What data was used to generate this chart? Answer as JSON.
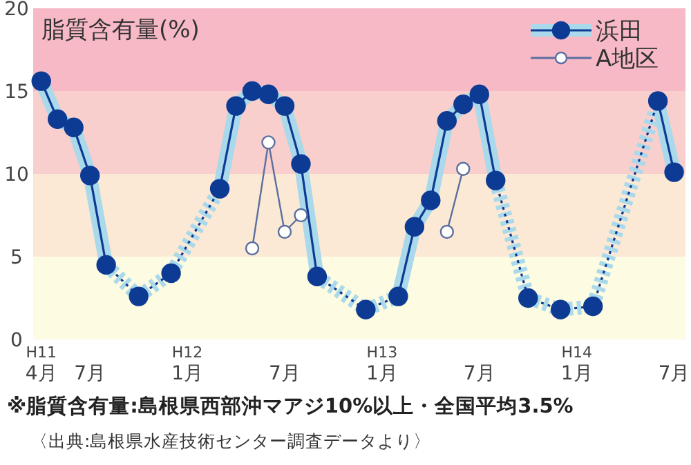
{
  "chart_data": {
    "type": "line",
    "ylabel": "脂質含有量(%)",
    "categories": [
      "H11\n4月",
      null,
      null,
      "7月",
      null,
      null,
      null,
      null,
      null,
      "H12\n1月",
      null,
      null,
      null,
      null,
      null,
      "7月",
      null,
      null,
      null,
      null,
      null,
      "H13\n1月",
      null,
      null,
      null,
      null,
      null,
      "7月",
      null,
      null,
      null,
      null,
      null,
      "H14\n1月",
      null,
      null,
      null,
      null,
      null,
      "7月"
    ],
    "series": [
      {
        "name": "浜田",
        "color": "#0d3b94",
        "marker": "circle",
        "values": [
          15.6,
          13.3,
          12.8,
          9.9,
          4.5,
          null,
          2.6,
          null,
          4.0,
          null,
          null,
          9.1,
          14.1,
          15.0,
          14.8,
          14.1,
          10.6,
          3.8,
          null,
          null,
          1.8,
          null,
          2.6,
          6.8,
          8.4,
          13.2,
          14.2,
          14.8,
          9.6,
          null,
          2.5,
          null,
          1.8,
          null,
          2.0,
          null,
          null,
          null,
          14.4,
          10.1
        ]
      },
      {
        "name": "A地区",
        "color": "#5a6fa0",
        "marker": "circle",
        "values": [
          null,
          null,
          null,
          null,
          null,
          null,
          null,
          null,
          null,
          null,
          null,
          null,
          null,
          5.5,
          11.9,
          6.5,
          7.5,
          null,
          null,
          null,
          null,
          null,
          null,
          null,
          null,
          6.5,
          10.3,
          null,
          null,
          null,
          null,
          null,
          null,
          null,
          null,
          null,
          null,
          null,
          null,
          null
        ]
      }
    ],
    "ylim": [
      0,
      20
    ],
    "yticks": [
      0,
      5,
      10,
      15,
      20
    ],
    "bands": [
      {
        "axis": "y",
        "from": 15,
        "to": 20,
        "color": "#f7b9c6"
      },
      {
        "axis": "y",
        "from": 10,
        "to": 15,
        "color": "#f8cfcc"
      },
      {
        "axis": "y",
        "from": 5,
        "to": 10,
        "color": "#fbe9d6"
      },
      {
        "axis": "y",
        "from": 0,
        "to": 5,
        "color": "#fdfbe1"
      }
    ],
    "legend": "top right",
    "grid": false,
    "annotations": [
      "※脂質含有量:島根県西部沖マアジ10%以上・全国平均3.5%",
      "〈出典:島根県水産技術センター調査データより〉"
    ]
  }
}
